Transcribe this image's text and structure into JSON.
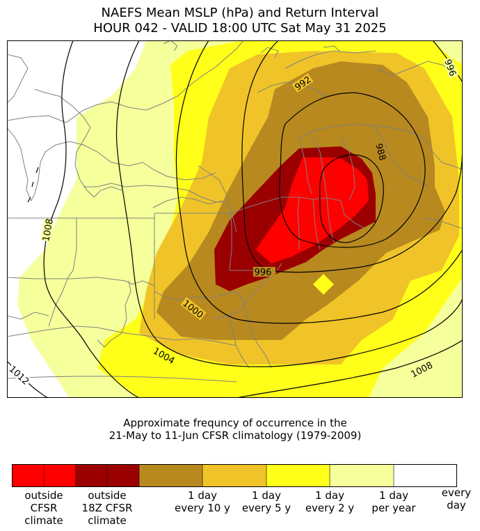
{
  "title": {
    "line1": "NAEFS Mean MSLP (hPa) and Return Interval",
    "line2": "HOUR 042 - VALID 18:00 UTC Sat May 31 2025"
  },
  "caption": {
    "line1": "Approximate frequncy of occurrence in the",
    "line2": "21-May to 11-Jun CFSR climatology (1979-2009)"
  },
  "colors": {
    "outside_cfsr": "#ff0000",
    "outside_18z": "#9b0000",
    "every_10y": "#b8891f",
    "every_5y": "#f0c428",
    "every_2y": "#ffff19",
    "per_year": "#f5ff9b",
    "every_day": "#ffffff",
    "borders": "#808080",
    "isobars": "#000000"
  },
  "isobar_labels": [
    "996",
    "992",
    "988",
    "1008",
    "996",
    "1000",
    "1004",
    "1012",
    "1008"
  ],
  "legend": [
    {
      "label": "outside\nCFSR\nclimate",
      "color": "#ff0000"
    },
    {
      "label": "outside\n18Z CFSR\nclimate",
      "color": "#9b0000"
    },
    {
      "label": "",
      "color": "#b8891f"
    },
    {
      "label": "1 day\nevery 10 y",
      "color": "#f0c428"
    },
    {
      "label": "1 day\nevery 5 y",
      "color": "#ffff19"
    },
    {
      "label": "1 day\nevery 2 y",
      "color": "#f5ff9b"
    },
    {
      "label": "1 day\nper year",
      "color": "#ffffff"
    },
    {
      "label": "every\nday",
      "color": ""
    }
  ]
}
